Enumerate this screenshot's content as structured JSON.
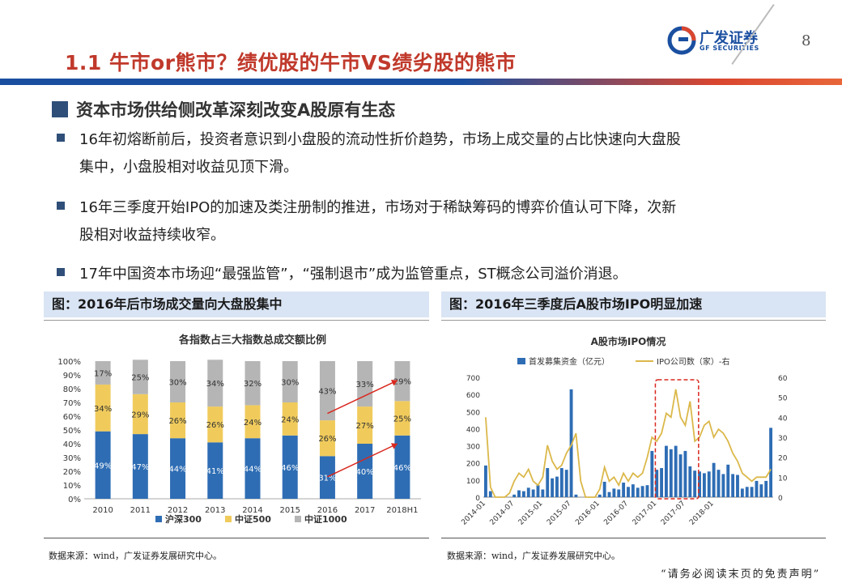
{
  "header": {
    "title": "1.1 牛市or熊市？绩优股的牛市VS绩劣股的熊市",
    "logo_cn": "广发证券",
    "logo_en": "GF SECURITIES",
    "page_number": "8"
  },
  "section": {
    "heading": "资本市场供给侧改革深刻改变A股原有生态"
  },
  "bullets": [
    {
      "line1": "16年初熔断前后，投资者意识到小盘股的流动性折价趋势，市场上成交量的占比快速向大盘股",
      "line2": "集中，小盘股相对收益见顶下滑。"
    },
    {
      "line1": "16年三季度开始IPO的加速及类注册制的推进，市场对于稀缺筹码的博弈价值认可下降，次新",
      "line2": "股相对收益持续收窄。"
    },
    {
      "line1": "17年中国资本市场迎“最强监管”，“强制退市”成为监管重点，ST概念公司溢价消退。",
      "line2": ""
    }
  ],
  "figures": {
    "left_caption": "图：2016年后市场成交量向大盘股集中",
    "right_caption": "图：2016年三季度后A股市场IPO明显加速",
    "left_source": "数据来源：wind，广发证券发展研究中心。",
    "right_source": "数据来源：wind，广发证券发展研究中心。"
  },
  "footer": {
    "disclaimer": "“请务必阅读末页的免责声明”"
  },
  "chart_data": [
    {
      "type": "bar",
      "stacked": true,
      "title": "各指数占三大指数总成交额比例",
      "categories": [
        "2010",
        "2011",
        "2012",
        "2013",
        "2014",
        "2015",
        "2016",
        "2017",
        "2018H1"
      ],
      "series": [
        {
          "name": "沪深300",
          "color": "#2e6db4",
          "values": [
            49,
            47,
            44,
            41,
            44,
            46,
            31,
            40,
            46
          ]
        },
        {
          "name": "中证500",
          "color": "#f0cb5c",
          "values": [
            34,
            29,
            26,
            26,
            24,
            24,
            26,
            27,
            25
          ]
        },
        {
          "name": "中证1000",
          "color": "#b5b5b5",
          "values": [
            17,
            25,
            30,
            34,
            32,
            30,
            43,
            33,
            29
          ]
        }
      ],
      "ylim": [
        0,
        100
      ],
      "yticks": [
        "0%",
        "10%",
        "20%",
        "30%",
        "40%",
        "50%",
        "60%",
        "70%",
        "80%",
        "90%",
        "100%"
      ],
      "legend": "bottom"
    },
    {
      "type": "bar+line",
      "title": "A股市场IPO情况",
      "series": [
        {
          "name": "首发募集资金（亿元）",
          "type": "bar",
          "color": "#2e6db4",
          "axis": "left",
          "values": [
            185,
            35,
            0,
            0,
            0,
            0,
            15,
            40,
            35,
            55,
            45,
            70,
            45,
            170,
            110,
            120,
            170,
            160,
            630,
            15,
            0,
            0,
            0,
            0,
            15,
            90,
            30,
            50,
            45,
            85,
            60,
            75,
            55,
            65,
            70,
            270,
            160,
            170,
            300,
            280,
            300,
            250,
            270,
            180,
            155,
            150,
            140,
            150,
            200,
            160,
            135,
            190,
            135,
            130,
            50,
            60,
            60,
            95,
            75,
            95,
            405
          ]
        },
        {
          "name": "IPO公司数（家）-右",
          "type": "line",
          "color": "#dbb84a",
          "axis": "right",
          "values": [
            40,
            5,
            0,
            0,
            0,
            2,
            8,
            12,
            10,
            14,
            8,
            6,
            10,
            26,
            18,
            14,
            16,
            22,
            26,
            32,
            8,
            0,
            0,
            0,
            4,
            15,
            8,
            10,
            6,
            12,
            8,
            12,
            10,
            12,
            20,
            30,
            28,
            32,
            42,
            40,
            54,
            40,
            36,
            48,
            28,
            30,
            36,
            38,
            30,
            34,
            32,
            28,
            22,
            18,
            12,
            10,
            8,
            10,
            10,
            10,
            14
          ]
        }
      ],
      "y_left": {
        "ylim": [
          0,
          700
        ],
        "ticks": [
          "0",
          "100",
          "200",
          "300",
          "400",
          "500",
          "600",
          "700"
        ]
      },
      "y_right": {
        "ylim": [
          0,
          60
        ],
        "ticks": [
          "0",
          "10",
          "20",
          "30",
          "40",
          "50",
          "60"
        ]
      },
      "x_ticks": [
        "2014-01",
        "2014-07",
        "2015-01",
        "2015-07",
        "2016-01",
        "2016-07",
        "2017-01",
        "2017-07",
        "2018-01"
      ],
      "legend": "top"
    }
  ]
}
